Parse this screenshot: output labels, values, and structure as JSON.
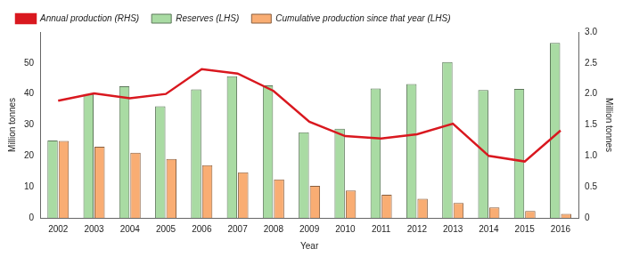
{
  "chart_data": {
    "type": "bar",
    "x_label": "Year",
    "y_label": "Million tonnes",
    "y2_label": "Million tonnes",
    "categories": [
      "2002",
      "2003",
      "2004",
      "2005",
      "2006",
      "2007",
      "2008",
      "2009",
      "2010",
      "2011",
      "2012",
      "2013",
      "2014",
      "2015",
      "2016"
    ],
    "series": [
      {
        "name": "Reserves (LHS)",
        "type": "bar",
        "color": "#a9dba3",
        "values": [
          25,
          40,
          42.5,
          36,
          41.5,
          45.7,
          42.8,
          27.6,
          28.8,
          41.8,
          43.2,
          50.3,
          41.3,
          41.6,
          56.5
        ]
      },
      {
        "name": "Cumulative production since that year (LHS)",
        "type": "bar",
        "color": "#f9ad73",
        "values": [
          24.8,
          23,
          21,
          19,
          17,
          14.7,
          12.4,
          10.3,
          8.8,
          7.5,
          6.2,
          4.8,
          3.4,
          2.2,
          1.3
        ]
      },
      {
        "name": "Annual production (RHS)",
        "type": "line",
        "color": "#d9181f",
        "marker": "none",
        "axis": "y2",
        "values": [
          1.89,
          2.01,
          1.93,
          2.0,
          2.4,
          2.33,
          2.05,
          1.55,
          1.32,
          1.28,
          1.35,
          1.52,
          1.0,
          0.91,
          1.41
        ]
      }
    ],
    "ylim": [
      0,
      60
    ],
    "yticks": [
      0,
      10,
      20,
      30,
      40,
      50
    ],
    "y2lim": [
      0,
      3
    ],
    "y2ticks": [
      0,
      0.5,
      {
        "value": 1,
        "label": "1.0"
      },
      1.5,
      {
        "value": 2,
        "label": "2.0"
      },
      2.5,
      {
        "value": 3,
        "label": "3.0"
      }
    ],
    "grid": false,
    "legend": "top"
  }
}
